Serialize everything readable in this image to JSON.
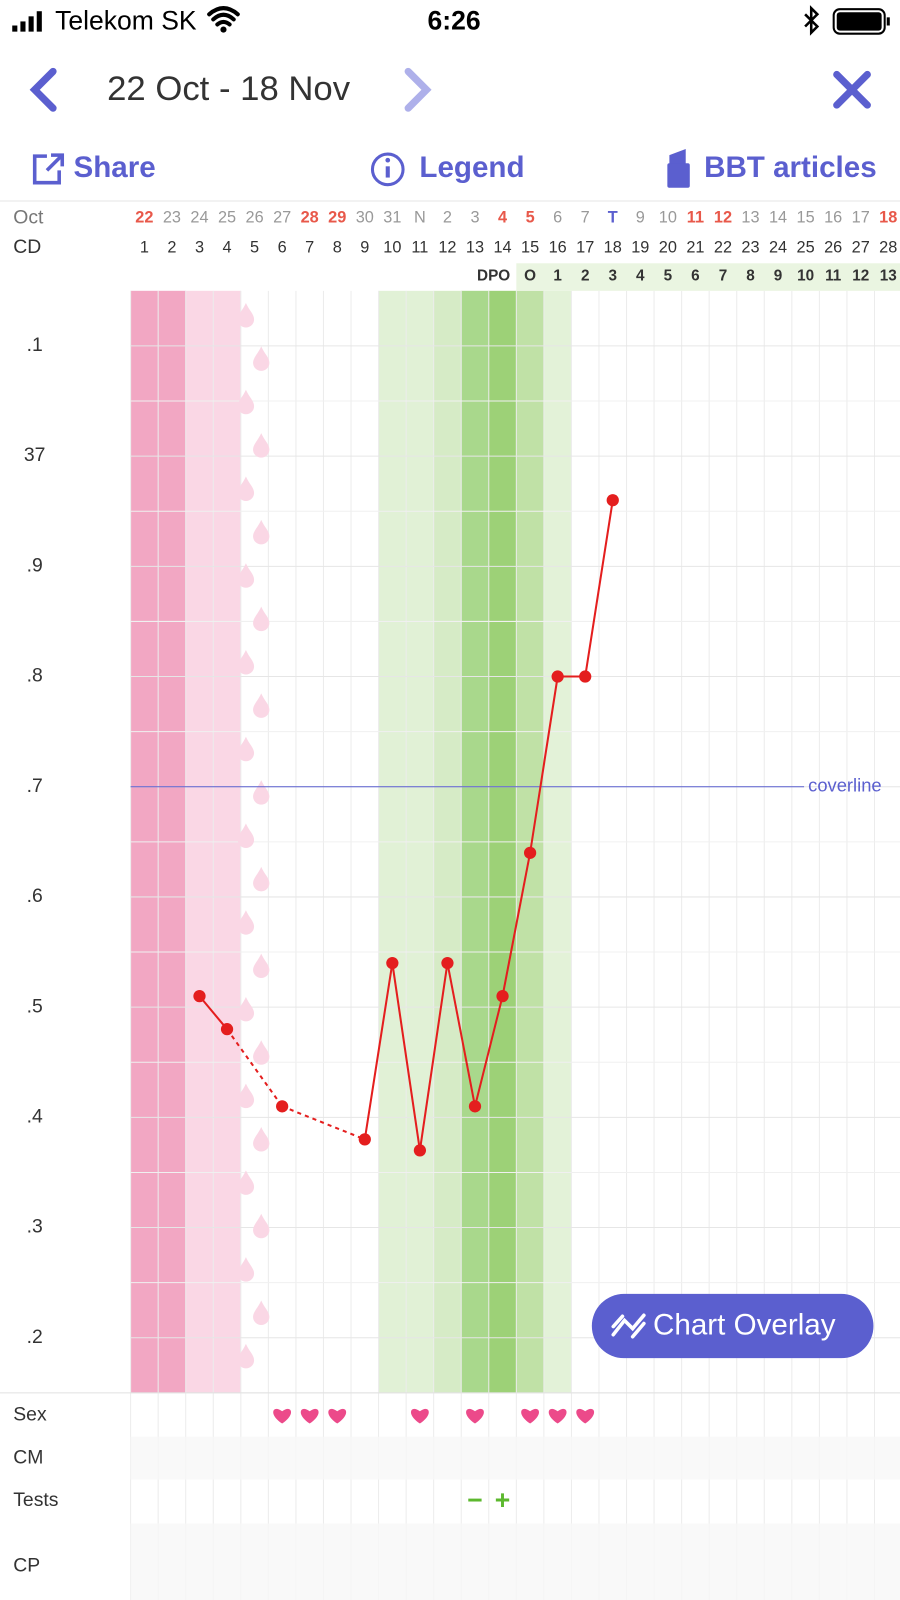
{
  "status_bar": {
    "carrier": "Telekom SK",
    "time": "6:26"
  },
  "nav": {
    "range": "22 Oct - 18 Nov"
  },
  "toolbar": {
    "share": "Share",
    "legend": "Legend",
    "articles": "BBT articles"
  },
  "chart": {
    "type": "line",
    "month_label": "Oct",
    "cd_label": "CD",
    "dpo_label": "DPO",
    "dates": [
      {
        "label": "22",
        "color": "#e8584a"
      },
      {
        "label": "23",
        "color": "#999"
      },
      {
        "label": "24",
        "color": "#999"
      },
      {
        "label": "25",
        "color": "#999"
      },
      {
        "label": "26",
        "color": "#999"
      },
      {
        "label": "27",
        "color": "#999"
      },
      {
        "label": "28",
        "color": "#e8584a"
      },
      {
        "label": "29",
        "color": "#e8584a"
      },
      {
        "label": "30",
        "color": "#999"
      },
      {
        "label": "31",
        "color": "#999"
      },
      {
        "label": "N",
        "color": "#999"
      },
      {
        "label": "2",
        "color": "#999"
      },
      {
        "label": "3",
        "color": "#999"
      },
      {
        "label": "4",
        "color": "#e8584a"
      },
      {
        "label": "5",
        "color": "#e8584a"
      },
      {
        "label": "6",
        "color": "#999"
      },
      {
        "label": "7",
        "color": "#999"
      },
      {
        "label": "T",
        "color": "#5b5fcf"
      },
      {
        "label": "9",
        "color": "#999"
      },
      {
        "label": "10",
        "color": "#999"
      },
      {
        "label": "11",
        "color": "#e8584a"
      },
      {
        "label": "12",
        "color": "#e8584a"
      },
      {
        "label": "13",
        "color": "#999"
      },
      {
        "label": "14",
        "color": "#999"
      },
      {
        "label": "15",
        "color": "#999"
      },
      {
        "label": "16",
        "color": "#999"
      },
      {
        "label": "17",
        "color": "#999"
      },
      {
        "label": "18",
        "color": "#e8584a"
      }
    ],
    "cycle_days": [
      1,
      2,
      3,
      4,
      5,
      6,
      7,
      8,
      9,
      10,
      11,
      12,
      13,
      14,
      15,
      16,
      17,
      18,
      19,
      20,
      21,
      22,
      23,
      24,
      25,
      26,
      27,
      28
    ],
    "dpo": [
      null,
      null,
      null,
      null,
      null,
      null,
      null,
      null,
      null,
      null,
      null,
      null,
      null,
      null,
      "O",
      "1",
      "2",
      "3",
      "4",
      "5",
      "6",
      "7",
      "8",
      "9",
      "10",
      "11",
      "12",
      "13"
    ],
    "day_colors": [
      "#f2a7c3",
      "#f2a7c3",
      "#fad7e5",
      "#fad7e5",
      null,
      null,
      null,
      null,
      null,
      "#e1f1d6",
      "#e1f1d6",
      "#d6ebc6",
      "#a9d88c",
      "#9dd177",
      "#c0e1a6",
      "#e3f2d8",
      null,
      null,
      null,
      null,
      null,
      null,
      null,
      null,
      null,
      null,
      null,
      null
    ],
    "spotting_days": [
      5
    ],
    "temperatures": [
      null,
      null,
      36.51,
      36.48,
      null,
      36.41,
      null,
      null,
      36.38,
      36.54,
      36.37,
      36.54,
      36.41,
      36.51,
      36.64,
      36.8,
      36.8,
      36.96,
      null,
      null,
      null,
      null,
      null,
      null,
      null,
      null,
      null,
      null
    ],
    "color": "#e41e1e",
    "ylim": [
      36.15,
      37.15
    ],
    "yticks": [
      {
        "value": 36.2,
        "label": ".2"
      },
      {
        "value": 36.3,
        "label": ".3"
      },
      {
        "value": 36.4,
        "label": ".4"
      },
      {
        "value": 36.5,
        "label": ".5"
      },
      {
        "value": 36.6,
        "label": ".6"
      },
      {
        "value": 36.7,
        "label": ".7"
      },
      {
        "value": 36.8,
        "label": ".8"
      },
      {
        "value": 36.9,
        "label": ".9"
      },
      37,
      {
        "value": 37.1,
        "label": ".1"
      }
    ],
    "grid": true,
    "coverline": {
      "value": 36.7,
      "label": "coverline",
      "color": "#5b5fcf"
    },
    "overlay_button": "Chart Overlay",
    "rows": {
      "sex": "Sex",
      "cm": "CM",
      "tests": "Tests",
      "cp": "CP"
    },
    "sex_days": [
      6,
      7,
      8,
      11,
      13,
      15,
      16,
      17
    ],
    "tests": [
      {
        "day": 13,
        "label": "−"
      },
      {
        "day": 14,
        "label": "+"
      }
    ]
  }
}
